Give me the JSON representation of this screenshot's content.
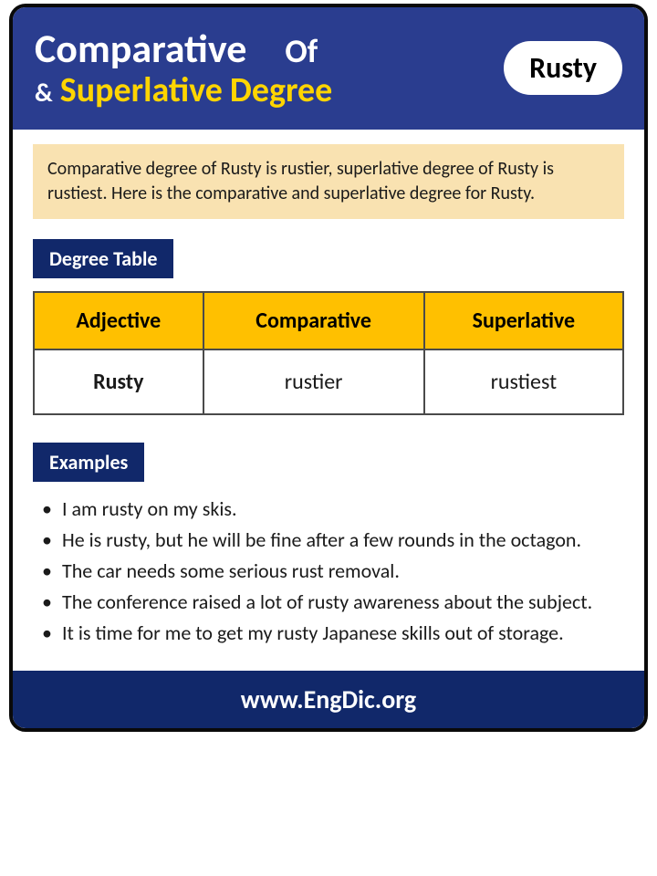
{
  "header": {
    "comparative": "Comparative",
    "of": "Of",
    "amp": "&",
    "superlative": "Superlative",
    "degree": "Degree",
    "word": "Rusty"
  },
  "intro": "Comparative degree of Rusty is rustier, superlative degree of Rusty is rustiest. Here is the comparative and superlative degree for Rusty.",
  "labels": {
    "degree_table": "Degree Table",
    "examples": "Examples"
  },
  "table": {
    "columns": [
      "Adjective",
      "Comparative",
      "Superlative"
    ],
    "row": {
      "adjective": "Rusty",
      "comparative": "rustier",
      "superlative": "rustiest"
    }
  },
  "examples": [
    "I am rusty on my skis.",
    "He is rusty, but he will be fine after a few rounds in the octagon.",
    "The car needs some serious rust removal.",
    "The conference raised a lot of rusty awareness about the subject.",
    "It is time for me to get my rusty Japanese skills out of storage."
  ],
  "footer": "www.EngDic.org",
  "colors": {
    "header_bg": "#2a3d8f",
    "label_bg": "#11286a",
    "table_header_bg": "#ffc000",
    "intro_bg": "#f9e2b1",
    "accent_yellow": "#ffd500",
    "white": "#ffffff",
    "black": "#0a0a0a",
    "text": "#1a1a1a"
  }
}
